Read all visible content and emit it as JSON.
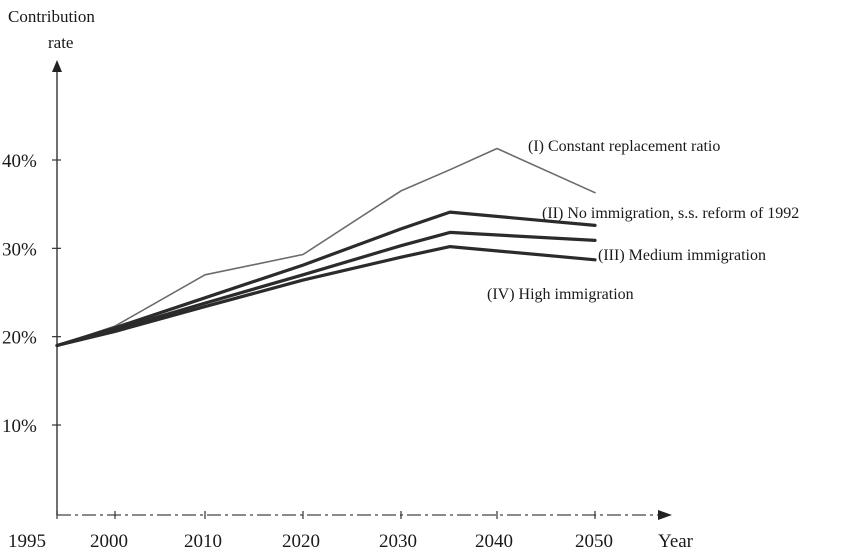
{
  "chart_data": {
    "type": "line",
    "title": "",
    "ylabel": "Contribution rate",
    "xlabel": "Year",
    "ylim": [
      10,
      45
    ],
    "xlim": [
      1995,
      2055
    ],
    "yticks": [
      {
        "value": 10,
        "label": "10%"
      },
      {
        "value": 20,
        "label": "20%"
      },
      {
        "value": 30,
        "label": "30%"
      },
      {
        "value": 40,
        "label": "40%"
      }
    ],
    "xticks": [
      {
        "value": 1995,
        "label": "1995"
      },
      {
        "value": 2000,
        "label": "2000"
      },
      {
        "value": 2010,
        "label": "2010"
      },
      {
        "value": 2020,
        "label": "2020"
      },
      {
        "value": 2030,
        "label": "2030"
      },
      {
        "value": 2040,
        "label": "2040"
      },
      {
        "value": 2050,
        "label": "2050"
      }
    ],
    "grid": false,
    "series": [
      {
        "name": "(I) Constant replacement ratio",
        "color": "#6b6b6b",
        "x": [
          1995,
          2000,
          2010,
          2020,
          2030,
          2035,
          2040,
          2050
        ],
        "y": [
          19,
          21.2,
          27.0,
          29.3,
          36.5,
          38.9,
          41.3,
          36.3
        ]
      },
      {
        "name": "(II) No immigration, s.s. reform of 1992",
        "color": "#2b2b2b",
        "x": [
          1995,
          2000,
          2010,
          2020,
          2030,
          2035,
          2050
        ],
        "y": [
          19,
          21.0,
          24.4,
          28.1,
          32.2,
          34.1,
          32.6
        ]
      },
      {
        "name": "(III) Medium immigration",
        "color": "#2b2b2b",
        "x": [
          1995,
          2000,
          2010,
          2020,
          2030,
          2035,
          2050
        ],
        "y": [
          19,
          20.8,
          23.8,
          27.0,
          30.3,
          31.8,
          30.9
        ]
      },
      {
        "name": "(IV) High immigration",
        "color": "#2b2b2b",
        "x": [
          1995,
          2000,
          2010,
          2020,
          2030,
          2035,
          2050
        ],
        "y": [
          19,
          20.6,
          23.4,
          26.4,
          29.0,
          30.2,
          28.7
        ]
      }
    ]
  }
}
